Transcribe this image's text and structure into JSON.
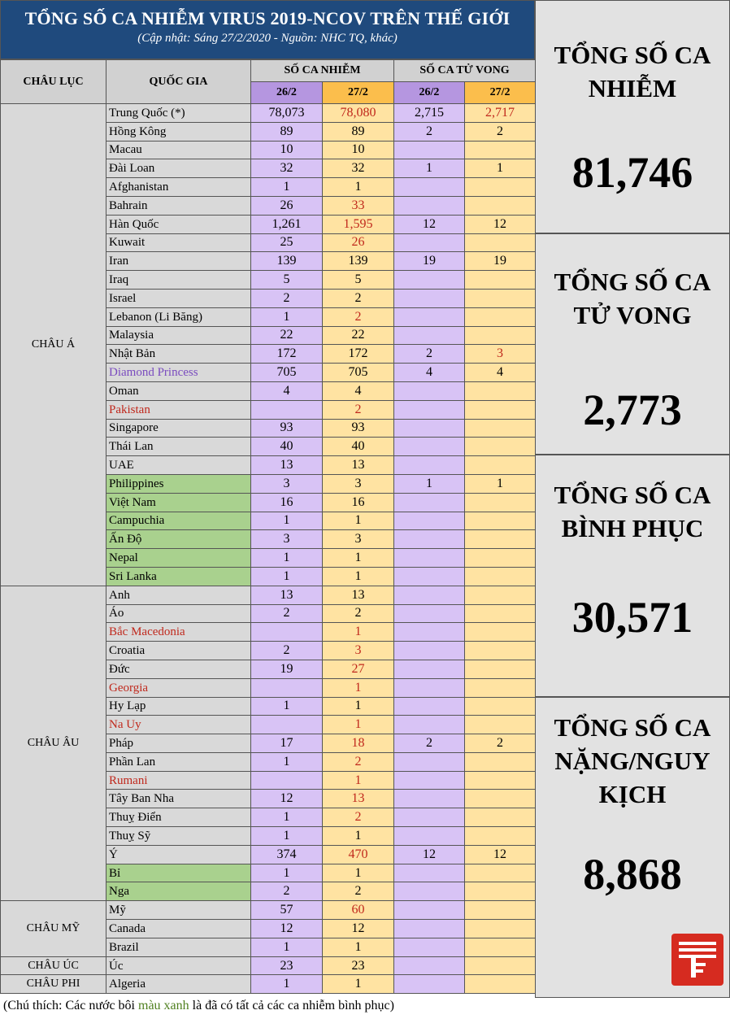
{
  "header": {
    "title": "TỔNG SỐ CA NHIỄM VIRUS 2019-NCOV TRÊN THẾ GIỚI",
    "subtitle": "(Cập nhật: Sáng 27/2/2020 - Nguồn: NHC TQ, khác)"
  },
  "columns": {
    "continent": "CHÂU LỤC",
    "country": "QUỐC GIA",
    "infected": "SỐ CA NHIỄM",
    "deaths": "SỐ CA TỬ VONG",
    "date_a": "26/2",
    "date_b": "27/2"
  },
  "groups": [
    {
      "continent": "CHÂU Á",
      "rows": [
        {
          "country": "Trung Quốc (*)",
          "inf_a": "78,073",
          "inf_b": "78,080",
          "inf_b_red": true,
          "d_a": "2,715",
          "d_b": "2,717",
          "d_b_red": true
        },
        {
          "country": "Hồng Kông",
          "inf_a": "89",
          "inf_b": "89",
          "d_a": "2",
          "d_b": "2"
        },
        {
          "country": "Macau",
          "inf_a": "10",
          "inf_b": "10",
          "d_a": "",
          "d_b": ""
        },
        {
          "country": "Đài Loan",
          "inf_a": "32",
          "inf_b": "32",
          "d_a": "1",
          "d_b": "1"
        },
        {
          "country": "Afghanistan",
          "inf_a": "1",
          "inf_b": "1",
          "d_a": "",
          "d_b": ""
        },
        {
          "country": "Bahrain",
          "inf_a": "26",
          "inf_b": "33",
          "inf_b_red": true,
          "d_a": "",
          "d_b": ""
        },
        {
          "country": "Hàn Quốc",
          "inf_a": "1,261",
          "inf_b": "1,595",
          "inf_b_red": true,
          "d_a": "12",
          "d_b": "12"
        },
        {
          "country": "Kuwait",
          "inf_a": "25",
          "inf_b": "26",
          "inf_b_red": true,
          "d_a": "",
          "d_b": ""
        },
        {
          "country": "Iran",
          "inf_a": "139",
          "inf_b": "139",
          "d_a": "19",
          "d_b": "19"
        },
        {
          "country": "Iraq",
          "inf_a": "5",
          "inf_b": "5",
          "d_a": "",
          "d_b": ""
        },
        {
          "country": "Israel",
          "inf_a": "2",
          "inf_b": "2",
          "d_a": "",
          "d_b": ""
        },
        {
          "country": "Lebanon (Li Băng)",
          "inf_a": "1",
          "inf_b": "2",
          "inf_b_red": true,
          "d_a": "",
          "d_b": ""
        },
        {
          "country": "Malaysia",
          "inf_a": "22",
          "inf_b": "22",
          "d_a": "",
          "d_b": ""
        },
        {
          "country": "Nhật Bản",
          "inf_a": "172",
          "inf_b": "172",
          "d_a": "2",
          "d_b": "3",
          "d_b_red": true
        },
        {
          "country": "Diamond Princess",
          "country_color": "purple",
          "inf_a": "705",
          "inf_b": "705",
          "d_a": "4",
          "d_b": "4"
        },
        {
          "country": "Oman",
          "inf_a": "4",
          "inf_b": "4",
          "d_a": "",
          "d_b": ""
        },
        {
          "country": "Pakistan",
          "country_color": "red",
          "inf_a": "",
          "inf_b": "2",
          "inf_b_red": true,
          "d_a": "",
          "d_b": ""
        },
        {
          "country": "Singapore",
          "inf_a": "93",
          "inf_b": "93",
          "d_a": "",
          "d_b": ""
        },
        {
          "country": "Thái Lan",
          "inf_a": "40",
          "inf_b": "40",
          "d_a": "",
          "d_b": ""
        },
        {
          "country": "UAE",
          "inf_a": "13",
          "inf_b": "13",
          "d_a": "",
          "d_b": ""
        },
        {
          "country": "Philippines",
          "green": true,
          "inf_a": "3",
          "inf_b": "3",
          "d_a": "1",
          "d_b": "1"
        },
        {
          "country": "Việt Nam",
          "green": true,
          "inf_a": "16",
          "inf_b": "16",
          "d_a": "",
          "d_b": ""
        },
        {
          "country": "Campuchia",
          "green": true,
          "inf_a": "1",
          "inf_b": "1",
          "d_a": "",
          "d_b": ""
        },
        {
          "country": "Ấn Độ",
          "green": true,
          "inf_a": "3",
          "inf_b": "3",
          "d_a": "",
          "d_b": ""
        },
        {
          "country": "Nepal",
          "green": true,
          "inf_a": "1",
          "inf_b": "1",
          "d_a": "",
          "d_b": ""
        },
        {
          "country": "Sri Lanka",
          "green": true,
          "inf_a": "1",
          "inf_b": "1",
          "d_a": "",
          "d_b": ""
        }
      ]
    },
    {
      "continent": "CHÂU ÂU",
      "rows": [
        {
          "country": "Anh",
          "inf_a": "13",
          "inf_b": "13",
          "d_a": "",
          "d_b": ""
        },
        {
          "country": "Áo",
          "inf_a": "2",
          "inf_b": "2",
          "d_a": "",
          "d_b": ""
        },
        {
          "country": "Bắc Macedonia",
          "country_color": "red",
          "inf_a": "",
          "inf_b": "1",
          "inf_b_red": true,
          "d_a": "",
          "d_b": ""
        },
        {
          "country": "Croatia",
          "inf_a": "2",
          "inf_b": "3",
          "inf_b_red": true,
          "d_a": "",
          "d_b": ""
        },
        {
          "country": "Đức",
          "inf_a": "19",
          "inf_b": "27",
          "inf_b_red": true,
          "d_a": "",
          "d_b": ""
        },
        {
          "country": "Georgia",
          "country_color": "red",
          "inf_a": "",
          "inf_b": "1",
          "inf_b_red": true,
          "d_a": "",
          "d_b": ""
        },
        {
          "country": "Hy Lạp",
          "inf_a": "1",
          "inf_b": "1",
          "d_a": "",
          "d_b": ""
        },
        {
          "country": "Na Uy",
          "country_color": "red",
          "inf_a": "",
          "inf_b": "1",
          "inf_b_red": true,
          "d_a": "",
          "d_b": ""
        },
        {
          "country": "Pháp",
          "inf_a": "17",
          "inf_b": "18",
          "inf_b_red": true,
          "d_a": "2",
          "d_b": "2"
        },
        {
          "country": "Phần Lan",
          "inf_a": "1",
          "inf_b": "2",
          "inf_b_red": true,
          "d_a": "",
          "d_b": ""
        },
        {
          "country": "Rumani",
          "country_color": "red",
          "inf_a": "",
          "inf_b": "1",
          "inf_b_red": true,
          "d_a": "",
          "d_b": ""
        },
        {
          "country": "Tây Ban Nha",
          "inf_a": "12",
          "inf_b": "13",
          "inf_b_red": true,
          "d_a": "",
          "d_b": ""
        },
        {
          "country": "Thuỵ Điển",
          "inf_a": "1",
          "inf_b": "2",
          "inf_b_red": true,
          "d_a": "",
          "d_b": ""
        },
        {
          "country": "Thuỵ Sỹ",
          "inf_a": "1",
          "inf_b": "1",
          "d_a": "",
          "d_b": ""
        },
        {
          "country": "Ý",
          "inf_a": "374",
          "inf_b": "470",
          "inf_b_red": true,
          "d_a": "12",
          "d_b": "12"
        },
        {
          "country": "Bỉ",
          "green": true,
          "inf_a": "1",
          "inf_b": "1",
          "d_a": "",
          "d_b": ""
        },
        {
          "country": "Nga",
          "green": true,
          "inf_a": "2",
          "inf_b": "2",
          "d_a": "",
          "d_b": ""
        }
      ]
    },
    {
      "continent": "CHÂU MỸ",
      "rows": [
        {
          "country": "Mỹ",
          "inf_a": "57",
          "inf_b": "60",
          "inf_b_red": true,
          "d_a": "",
          "d_b": ""
        },
        {
          "country": "Canada",
          "inf_a": "12",
          "inf_b": "12",
          "d_a": "",
          "d_b": ""
        },
        {
          "country": "Brazil",
          "inf_a": "1",
          "inf_b": "1",
          "d_a": "",
          "d_b": ""
        }
      ]
    },
    {
      "continent": "CHÂU ÚC",
      "rows": [
        {
          "country": "Úc",
          "inf_a": "23",
          "inf_b": "23",
          "d_a": "",
          "d_b": ""
        }
      ]
    },
    {
      "continent": "CHÂU PHI",
      "rows": [
        {
          "country": "Algeria",
          "inf_a": "1",
          "inf_b": "1",
          "d_a": "",
          "d_b": ""
        }
      ]
    }
  ],
  "summary": [
    {
      "label_lines": [
        "TỔNG SỐ CA",
        "NHIỄM"
      ],
      "value": "81,746"
    },
    {
      "label_lines": [
        "TỔNG SỐ CA",
        "TỬ VONG"
      ],
      "value": "2,773"
    },
    {
      "label_lines": [
        "TỔNG SỐ CA",
        "BÌNH PHỤC"
      ],
      "value": "30,571"
    },
    {
      "label_lines": [
        "TỔNG SỐ CA",
        "NẶNG/NGUY",
        "KỊCH"
      ],
      "value": "8,868"
    }
  ],
  "footer": {
    "before": "(Chú thích: Các nước bôi ",
    "highlight": "màu xanh",
    "after": " là đã có tất cả các ca nhiễm bình phục)"
  },
  "colors": {
    "header_bg": "#1f4a7d",
    "purple_col": "#d8c3f5",
    "orange_col": "#ffe3a2",
    "green_country": "#a9d18e",
    "red_text": "#c0281c",
    "logo": "#d62b20"
  },
  "logo": {
    "icon": "newspaper-logo-icon"
  }
}
